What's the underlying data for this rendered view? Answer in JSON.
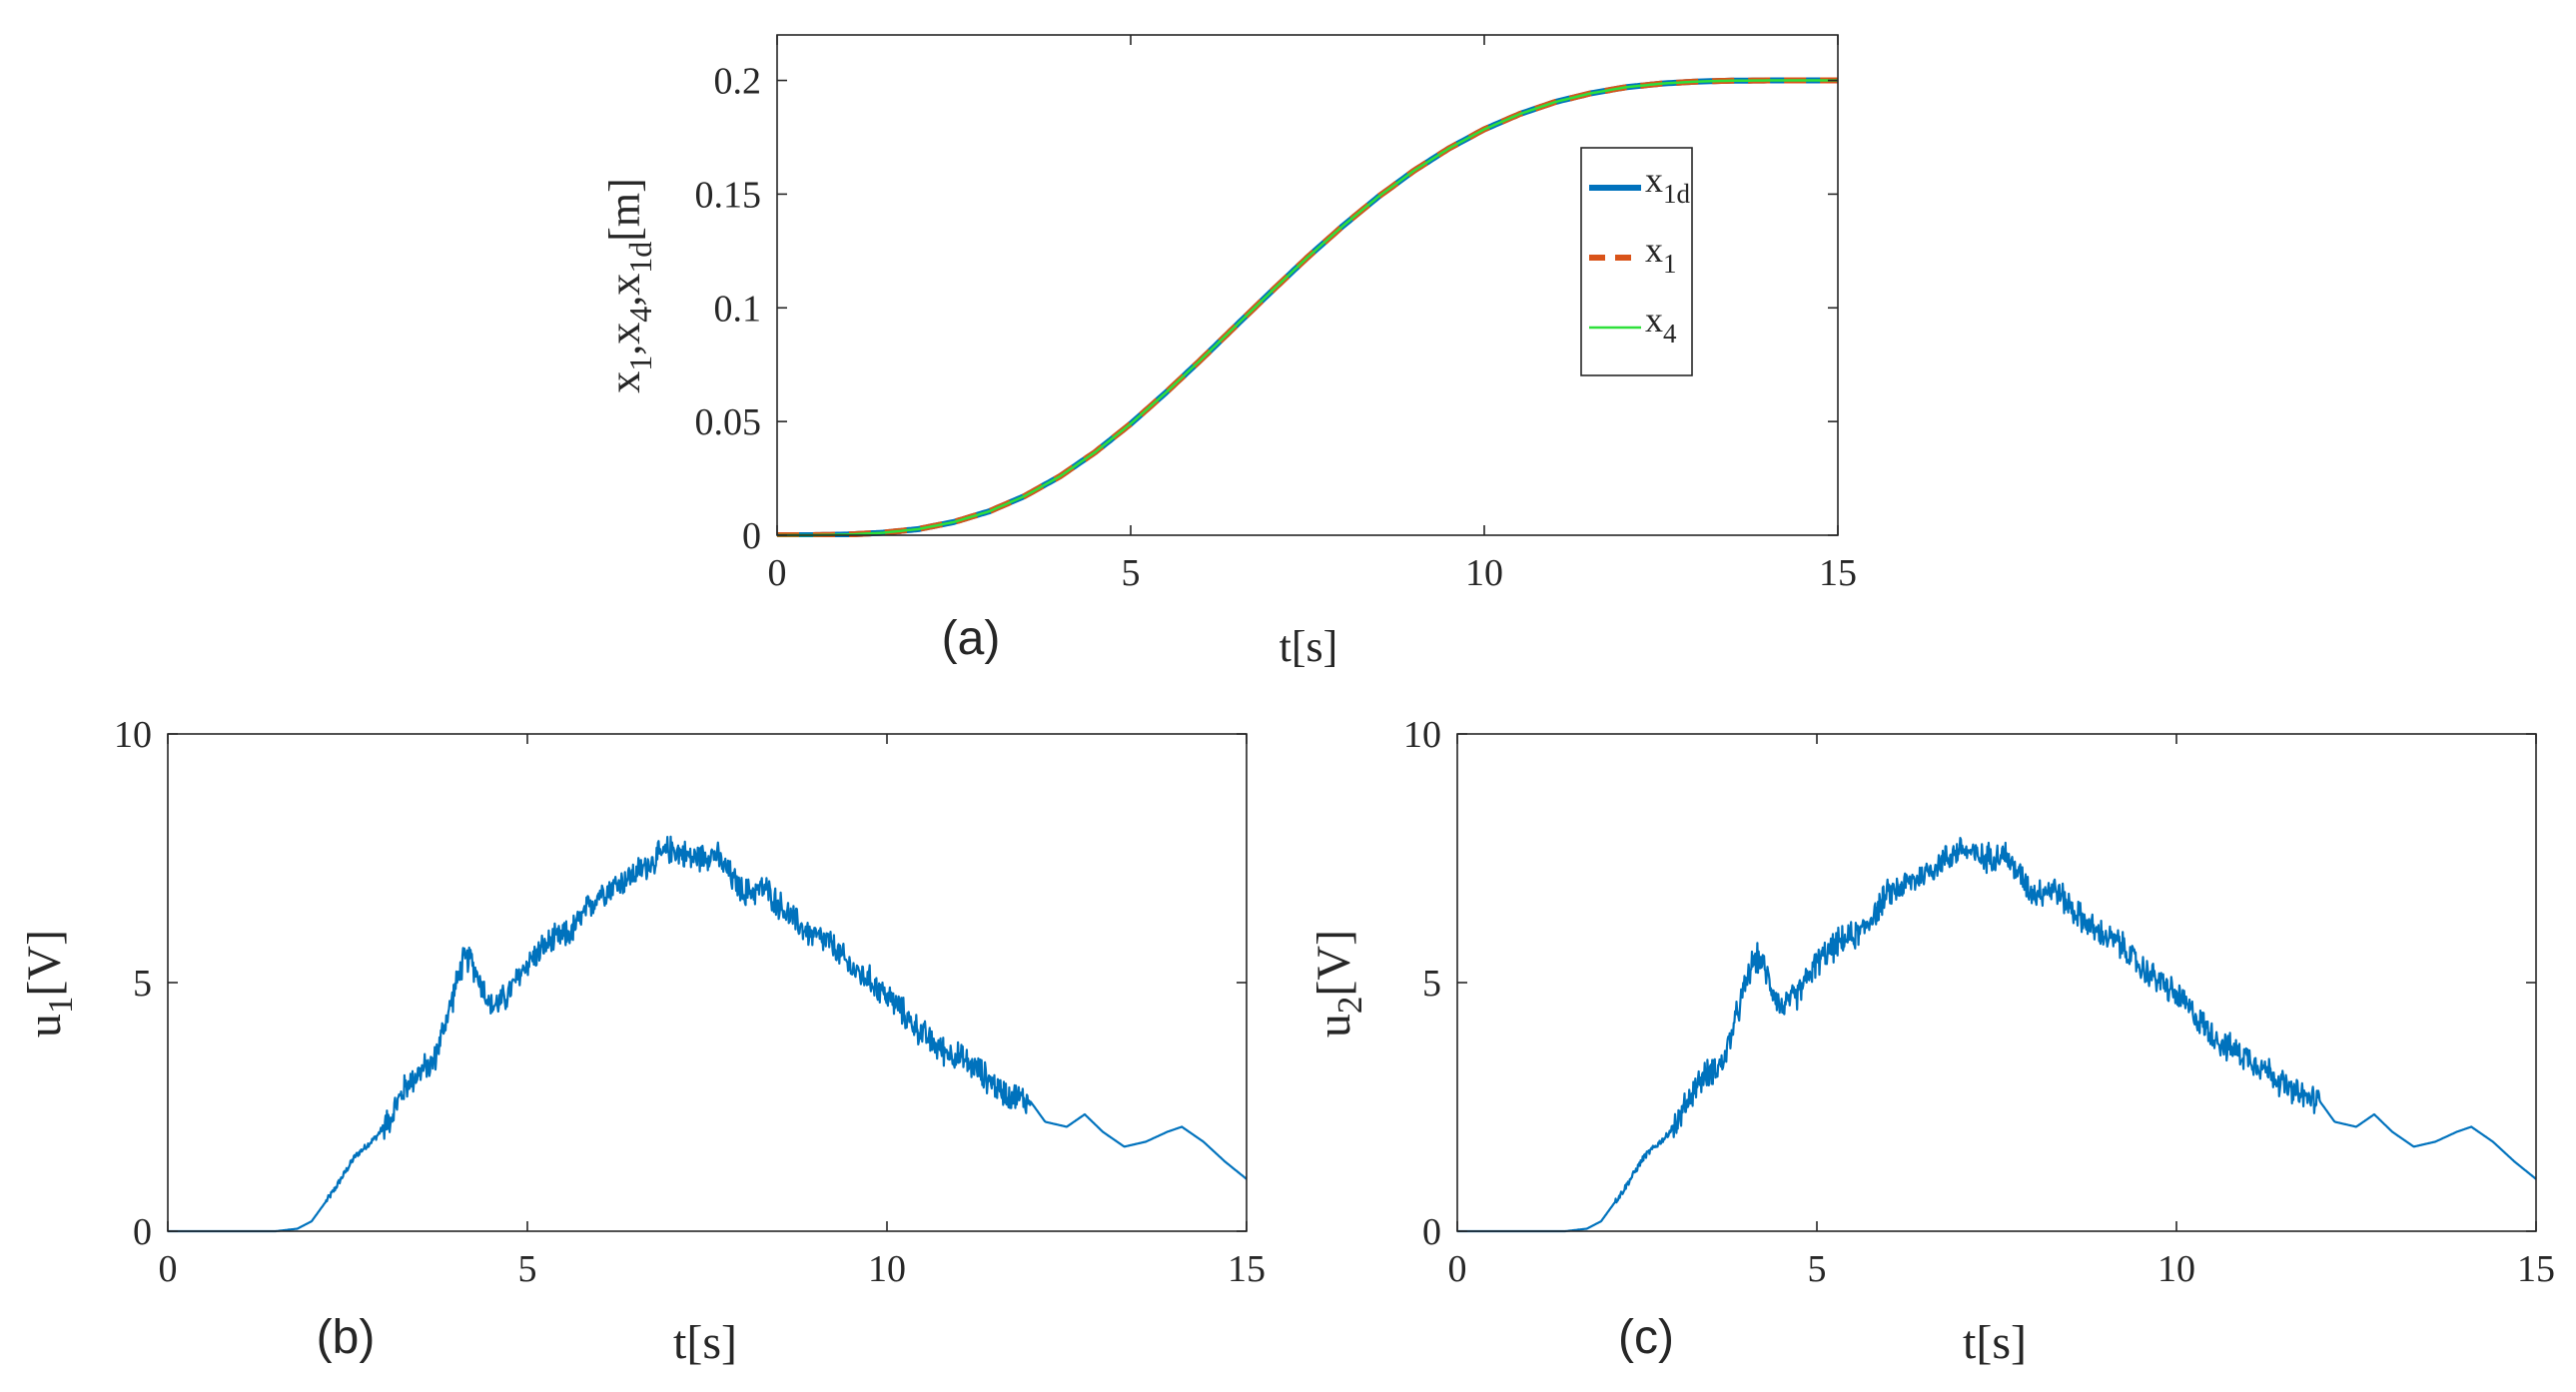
{
  "chart_data": [
    {
      "id": "a",
      "type": "line",
      "panel_label": "(a)",
      "xlabel": "t[s]",
      "ylabel": "x1,x4,x1d[m]",
      "ylabel_parts": [
        {
          "t": "x",
          "sub": false
        },
        {
          "t": "1",
          "sub": true
        },
        {
          "t": ",x",
          "sub": false
        },
        {
          "t": "4",
          "sub": true
        },
        {
          "t": ",x",
          "sub": false
        },
        {
          "t": "1d",
          "sub": true
        },
        {
          "t": "[m]",
          "sub": false
        }
      ],
      "xlim": [
        0,
        15
      ],
      "ylim": [
        0,
        0.22
      ],
      "xticks": [
        0,
        5,
        10,
        15
      ],
      "xtick_labels": [
        "0",
        "5",
        "10",
        "15"
      ],
      "yticks": [
        0,
        0.05,
        0.1,
        0.15,
        0.2
      ],
      "ytick_labels": [
        "0",
        "0.05",
        "0.1",
        "0.15",
        "0.2"
      ],
      "grid": false,
      "legend": "right",
      "series": [
        {
          "name": "x1d",
          "label_main": "x",
          "label_sub": "1d",
          "color": "#0072bd",
          "style": "solid",
          "width": "thick",
          "x": [
            0,
            0.5,
            1,
            1.5,
            2,
            2.5,
            3,
            3.5,
            4,
            4.5,
            5,
            5.5,
            6,
            6.5,
            7,
            7.5,
            8,
            8.5,
            9,
            9.5,
            10,
            10.5,
            11,
            11.5,
            12,
            12.5,
            13,
            13.5,
            14,
            14.5,
            15
          ],
          "y": [
            0,
            0,
            0.0003,
            0.0011,
            0.0027,
            0.0058,
            0.0105,
            0.0172,
            0.0259,
            0.0366,
            0.049,
            0.0628,
            0.0774,
            0.0925,
            0.1075,
            0.1222,
            0.136,
            0.1488,
            0.1602,
            0.1701,
            0.1785,
            0.1852,
            0.1905,
            0.1943,
            0.197,
            0.1986,
            0.1995,
            0.1999,
            0.2,
            0.2,
            0.2
          ]
        },
        {
          "name": "x1",
          "label_main": "x",
          "label_sub": "1",
          "color": "#d95319",
          "style": "dashed",
          "width": "thick",
          "x": [
            0,
            0.5,
            1,
            1.5,
            2,
            2.5,
            3,
            3.5,
            4,
            4.5,
            5,
            5.5,
            6,
            6.5,
            7,
            7.5,
            8,
            8.5,
            9,
            9.5,
            10,
            10.5,
            11,
            11.5,
            12,
            12.5,
            13,
            13.5,
            14,
            14.5,
            15
          ],
          "y": [
            0,
            0,
            0.0003,
            0.0011,
            0.0027,
            0.0058,
            0.0105,
            0.0172,
            0.0259,
            0.0366,
            0.049,
            0.0628,
            0.0774,
            0.0925,
            0.1075,
            0.1222,
            0.136,
            0.1488,
            0.1602,
            0.1701,
            0.1785,
            0.1852,
            0.1905,
            0.1943,
            0.197,
            0.1986,
            0.1995,
            0.1999,
            0.2,
            0.2,
            0.2
          ]
        },
        {
          "name": "x4",
          "label_main": "x",
          "label_sub": "4",
          "color": "#2ee03a",
          "style": "solid",
          "width": "thin",
          "x": [
            0,
            0.5,
            1,
            1.5,
            2,
            2.5,
            3,
            3.5,
            4,
            4.5,
            5,
            5.5,
            6,
            6.5,
            7,
            7.5,
            8,
            8.5,
            9,
            9.5,
            10,
            10.5,
            11,
            11.5,
            12,
            12.5,
            13,
            13.5,
            14,
            14.5,
            15
          ],
          "y": [
            0,
            0,
            0.0003,
            0.0011,
            0.0027,
            0.0058,
            0.0105,
            0.0172,
            0.0259,
            0.0366,
            0.049,
            0.0628,
            0.0774,
            0.0925,
            0.1075,
            0.1222,
            0.136,
            0.1488,
            0.1602,
            0.1701,
            0.1785,
            0.1852,
            0.1905,
            0.1943,
            0.197,
            0.1986,
            0.1995,
            0.1999,
            0.2,
            0.2,
            0.2
          ]
        }
      ]
    },
    {
      "id": "b",
      "type": "line",
      "panel_label": "(b)",
      "xlabel": "t[s]",
      "ylabel": "u1[V]",
      "ylabel_parts": [
        {
          "t": "u",
          "sub": false
        },
        {
          "t": "1",
          "sub": true
        },
        {
          "t": "[V]",
          "sub": false
        }
      ],
      "xlim": [
        0,
        15
      ],
      "ylim": [
        0,
        10
      ],
      "xticks": [
        0,
        5,
        10,
        15
      ],
      "xtick_labels": [
        "0",
        "5",
        "10",
        "15"
      ],
      "yticks": [
        0,
        5,
        10
      ],
      "ytick_labels": [
        "0",
        "5",
        "10"
      ],
      "grid": false,
      "series": [
        {
          "name": "u1",
          "color": "#0072bd",
          "style": "solid",
          "noise_start": 3.0,
          "noise_end": 12.0,
          "noise_amplitude": 0.35,
          "x": [
            0,
            1.5,
            1.8,
            2.0,
            2.3,
            2.6,
            2.9,
            3.1,
            3.3,
            3.5,
            3.7,
            3.9,
            4.1,
            4.2,
            4.35,
            4.5,
            4.7,
            5.0,
            5.3,
            5.6,
            6.0,
            6.4,
            6.8,
            7.0,
            7.3,
            7.6,
            7.8,
            8.0,
            8.3,
            8.6,
            8.9,
            9.2,
            9.5,
            9.8,
            10.1,
            10.4,
            10.7,
            11.0,
            11.3,
            11.6,
            12.0,
            12.2,
            12.5,
            12.75,
            13.0,
            13.3,
            13.6,
            13.9,
            14.1,
            14.4,
            14.7,
            15.0
          ],
          "y": [
            0,
            0,
            0.05,
            0.2,
            0.8,
            1.5,
            1.9,
            2.3,
            2.9,
            3.2,
            3.4,
            4.4,
            5.4,
            5.5,
            5.0,
            4.5,
            4.7,
            5.4,
            5.8,
            6.0,
            6.8,
            7.1,
            7.5,
            7.7,
            7.5,
            7.6,
            7.2,
            6.8,
            6.9,
            6.4,
            6.0,
            5.8,
            5.3,
            5.0,
            4.6,
            4.1,
            3.7,
            3.5,
            3.2,
            2.8,
            2.6,
            2.2,
            2.1,
            2.35,
            2.0,
            1.7,
            1.8,
            2.0,
            2.1,
            1.8,
            1.4,
            1.05
          ]
        }
      ]
    },
    {
      "id": "c",
      "type": "line",
      "panel_label": "(c)",
      "xlabel": "t[s]",
      "ylabel": "u2[V]",
      "ylabel_parts": [
        {
          "t": "u",
          "sub": false
        },
        {
          "t": "2",
          "sub": true
        },
        {
          "t": "[V]",
          "sub": false
        }
      ],
      "xlim": [
        0,
        15
      ],
      "ylim": [
        0,
        10
      ],
      "xticks": [
        0,
        5,
        10,
        15
      ],
      "xtick_labels": [
        "0",
        "5",
        "10",
        "15"
      ],
      "yticks": [
        0,
        5,
        10
      ],
      "ytick_labels": [
        "0",
        "5",
        "10"
      ],
      "grid": false,
      "series": [
        {
          "name": "u2",
          "color": "#0072bd",
          "style": "solid",
          "noise_start": 3.0,
          "noise_end": 12.0,
          "noise_amplitude": 0.35,
          "x": [
            0,
            1.5,
            1.8,
            2.0,
            2.3,
            2.6,
            2.9,
            3.1,
            3.3,
            3.5,
            3.7,
            3.9,
            4.1,
            4.2,
            4.35,
            4.5,
            4.7,
            5.0,
            5.3,
            5.6,
            6.0,
            6.4,
            6.8,
            7.0,
            7.3,
            7.6,
            7.8,
            8.0,
            8.3,
            8.6,
            8.9,
            9.2,
            9.5,
            9.8,
            10.1,
            10.4,
            10.7,
            11.0,
            11.3,
            11.6,
            12.0,
            12.2,
            12.5,
            12.75,
            13.0,
            13.3,
            13.6,
            13.9,
            14.1,
            14.4,
            14.7,
            15.0
          ],
          "y": [
            0,
            0,
            0.05,
            0.2,
            0.8,
            1.5,
            1.9,
            2.3,
            2.9,
            3.2,
            3.4,
            4.4,
            5.4,
            5.5,
            5.0,
            4.5,
            4.7,
            5.4,
            5.8,
            6.0,
            6.8,
            7.1,
            7.5,
            7.7,
            7.5,
            7.6,
            7.2,
            6.8,
            6.9,
            6.4,
            6.0,
            5.8,
            5.3,
            5.0,
            4.6,
            4.1,
            3.7,
            3.5,
            3.2,
            2.8,
            2.6,
            2.2,
            2.1,
            2.35,
            2.0,
            1.7,
            1.8,
            2.0,
            2.1,
            1.8,
            1.4,
            1.05
          ]
        }
      ]
    }
  ]
}
